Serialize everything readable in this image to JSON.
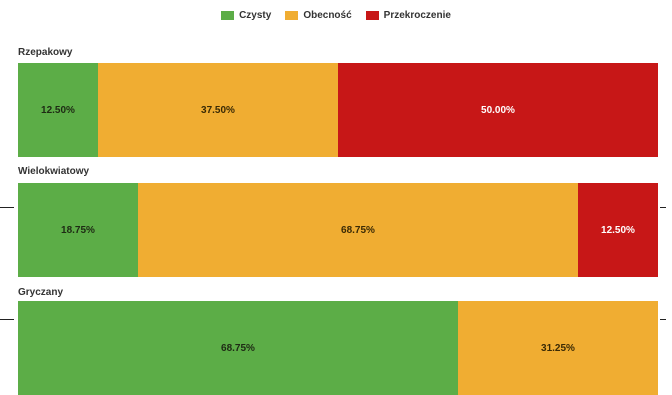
{
  "chart_data": {
    "type": "bar",
    "stacked": true,
    "orientation": "horizontal",
    "percent": true,
    "legend_position": "top",
    "categories": [
      "Rzepakowy",
      "Wielokwiatowy",
      "Gryczany"
    ],
    "series": [
      {
        "name": "Czysty",
        "color": "#5cad47",
        "values": [
          12.5,
          18.75,
          68.75
        ],
        "labels": [
          "12.50%",
          "18.75%",
          "68.75%"
        ],
        "label_color": "#1e2a14"
      },
      {
        "name": "Obecność",
        "color": "#f0ad32",
        "values": [
          37.5,
          68.75,
          31.25
        ],
        "labels": [
          "37.50%",
          "68.75%",
          "31.25%"
        ],
        "label_color": "#3a2a05"
      },
      {
        "name": "Przekroczenie",
        "color": "#c71717",
        "values": [
          50.0,
          12.5,
          0
        ],
        "labels": [
          "50.00%",
          "12.50%",
          ""
        ],
        "label_color": "#ffffff"
      }
    ]
  }
}
